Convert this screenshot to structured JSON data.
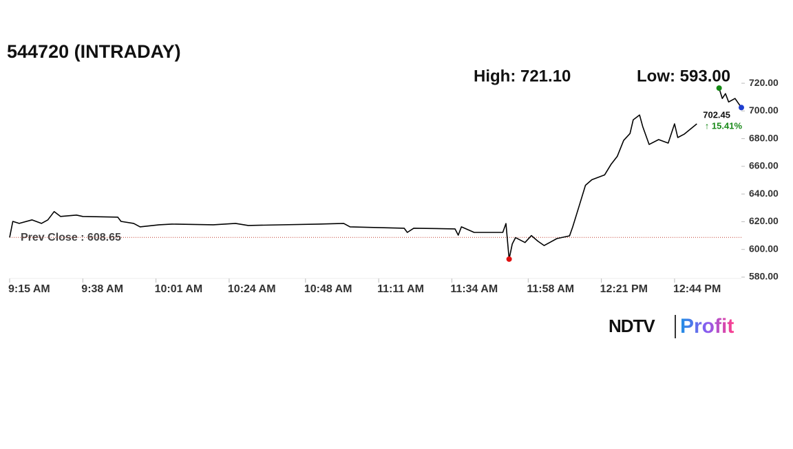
{
  "chart_data": {
    "type": "line",
    "title": "544720 (INTRADAY)",
    "high_label": "High: 721.10",
    "low_label": "Low: 593.00",
    "last_label": "702.45",
    "change_label": "↑ 15.41%",
    "prev_close": 608.65,
    "prev_close_label": "Prev Close : 608.65",
    "brand": [
      "NDTV",
      "Profit"
    ],
    "color": "#000000",
    "x": [
      0,
      1,
      3,
      7,
      10,
      12,
      14,
      16,
      21,
      23,
      34,
      35,
      39,
      41,
      47,
      51,
      64,
      71,
      75,
      97,
      105,
      107,
      124,
      125,
      127,
      140,
      141,
      142,
      146,
      155,
      156,
      157,
      158,
      159,
      162,
      164,
      166,
      168,
      170,
      172,
      176,
      177,
      179,
      181,
      183,
      187,
      189,
      191,
      193,
      195,
      196,
      198,
      199,
      201,
      204,
      207,
      209,
      210,
      212,
      216,
      217,
      223,
      224,
      225,
      226,
      228,
      230
    ],
    "values": [
      608.65,
      620.2,
      618.8,
      621.3,
      618.8,
      621.3,
      627.3,
      623.8,
      624.8,
      623.8,
      623.3,
      620.2,
      618.8,
      616.3,
      617.8,
      618.3,
      617.8,
      618.8,
      617.3,
      618.3,
      618.8,
      616.3,
      615.3,
      612.3,
      615.3,
      614.8,
      610.3,
      616.3,
      612.3,
      612.3,
      618.7,
      593.0,
      604.0,
      608.5,
      605.0,
      610.0,
      606.0,
      602.8,
      605.3,
      607.8,
      609.8,
      616.3,
      631.3,
      646.3,
      650.3,
      653.8,
      661.3,
      667.3,
      678.7,
      683.7,
      693.6,
      697.1,
      688.7,
      675.8,
      679.3,
      676.8,
      690.7,
      680.8,
      683.2,
      690.7,
      null,
      716.5,
      709.0,
      712.5,
      706.5,
      709.0,
      702.45
    ],
    "xlim": [
      0,
      230
    ],
    "xticks": [
      {
        "value": 0,
        "label": "9:15 AM"
      },
      {
        "value": 23,
        "label": "9:38 AM"
      },
      {
        "value": 46,
        "label": "10:01 AM"
      },
      {
        "value": 69,
        "label": "10:24 AM"
      },
      {
        "value": 93,
        "label": "10:48 AM"
      },
      {
        "value": 116,
        "label": "11:11 AM"
      },
      {
        "value": 139,
        "label": "11:34 AM"
      },
      {
        "value": 163,
        "label": "11:58 AM"
      },
      {
        "value": 186,
        "label": "12:21 PM"
      },
      {
        "value": 209,
        "label": "12:44 PM"
      }
    ],
    "ylim": [
      580,
      725
    ],
    "yticks": [
      {
        "value": 580,
        "label": "580.00"
      },
      {
        "value": 600,
        "label": "600.00"
      },
      {
        "value": 620,
        "label": "620.00"
      },
      {
        "value": 640,
        "label": "640.00"
      },
      {
        "value": 660,
        "label": "660.00"
      },
      {
        "value": 680,
        "label": "680.00"
      },
      {
        "value": 700,
        "label": "700.00"
      },
      {
        "value": 720,
        "label": "720.00"
      }
    ]
  }
}
